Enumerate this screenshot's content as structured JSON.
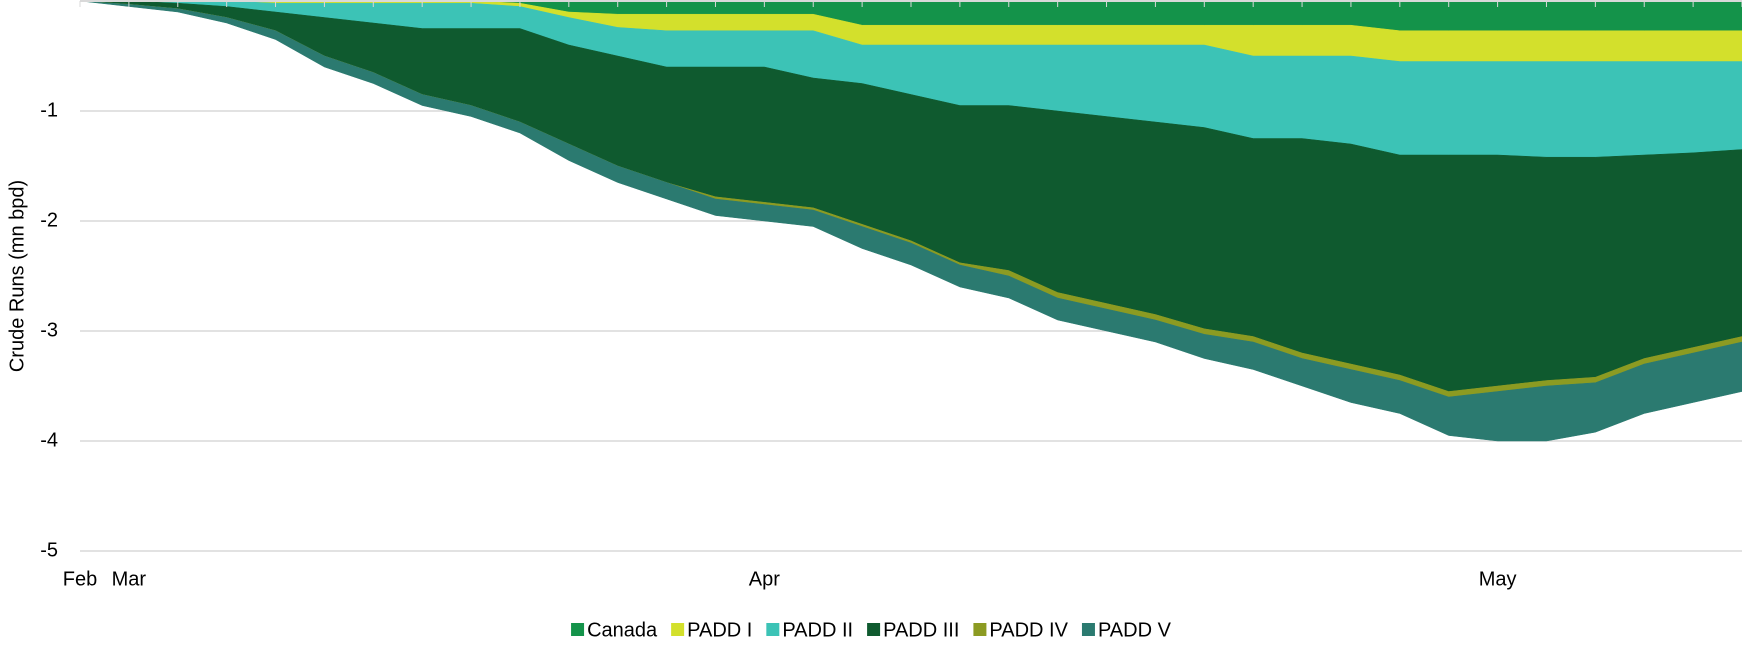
{
  "chart_data": {
    "type": "stacked_area",
    "y_label": "Crude Runs (mn bpd)",
    "categories": [
      "Feb",
      "Mar",
      null,
      null,
      null,
      null,
      null,
      null,
      null,
      null,
      null,
      null,
      null,
      null,
      "Apr",
      null,
      null,
      null,
      null,
      null,
      null,
      null,
      null,
      null,
      null,
      null,
      null,
      null,
      null,
      "May",
      null,
      null,
      null,
      null,
      null
    ],
    "ylim": [
      -5,
      0
    ],
    "yticks": [
      -5,
      -4,
      -3,
      -2,
      -1
    ],
    "grid": true,
    "legend": "bottom",
    "series": [
      {
        "name": "Canada",
        "color": "#14934a",
        "values": [
          0,
          0,
          0,
          0,
          0,
          0,
          0,
          0,
          0,
          -0.02,
          -0.1,
          -0.12,
          -0.12,
          -0.12,
          -0.12,
          -0.12,
          -0.22,
          -0.22,
          -0.22,
          -0.22,
          -0.22,
          -0.22,
          -0.22,
          -0.22,
          -0.22,
          -0.22,
          -0.22,
          -0.27,
          -0.27,
          -0.27,
          -0.27,
          -0.27,
          -0.27,
          -0.27,
          -0.27
        ]
      },
      {
        "name": "PADD I",
        "color": "#d3e02c",
        "values": [
          0,
          0,
          0,
          0,
          -0.02,
          -0.02,
          -0.02,
          -0.02,
          -0.02,
          -0.03,
          -0.05,
          -0.12,
          -0.15,
          -0.15,
          -0.15,
          -0.15,
          -0.18,
          -0.18,
          -0.18,
          -0.18,
          -0.18,
          -0.18,
          -0.18,
          -0.18,
          -0.28,
          -0.28,
          -0.28,
          -0.28,
          -0.28,
          -0.28,
          -0.28,
          -0.28,
          -0.28,
          -0.28,
          -0.28
        ]
      },
      {
        "name": "PADD II",
        "color": "#3cc3b6",
        "values": [
          0,
          0,
          -0.02,
          -0.05,
          -0.08,
          -0.13,
          -0.18,
          -0.23,
          -0.23,
          -0.2,
          -0.25,
          -0.26,
          -0.33,
          -0.33,
          -0.33,
          -0.43,
          -0.35,
          -0.45,
          -0.55,
          -0.55,
          -0.6,
          -0.65,
          -0.7,
          -0.75,
          -0.75,
          -0.75,
          -0.8,
          -0.85,
          -0.85,
          -0.85,
          -0.87,
          -0.87,
          -0.85,
          -0.83,
          -0.8
        ]
      },
      {
        "name": "PADD III",
        "color": "#0f5a2f",
        "values": [
          0,
          -0.03,
          -0.05,
          -0.1,
          -0.17,
          -0.35,
          -0.45,
          -0.6,
          -0.7,
          -0.85,
          -0.9,
          -1.0,
          -1.05,
          -1.18,
          -1.23,
          -1.18,
          -1.28,
          -1.33,
          -1.43,
          -1.5,
          -1.65,
          -1.7,
          -1.75,
          -1.83,
          -1.8,
          -1.95,
          -2.0,
          -2.0,
          -2.15,
          -2.1,
          -2.03,
          -2.0,
          -1.85,
          -1.77,
          -1.7
        ]
      },
      {
        "name": "PADD IV",
        "color": "#8c9b22",
        "values": [
          0,
          0,
          0,
          0,
          0,
          0,
          0,
          0,
          0,
          0,
          0,
          0,
          0,
          -0.02,
          -0.02,
          -0.02,
          -0.02,
          -0.02,
          -0.02,
          -0.05,
          -0.05,
          -0.05,
          -0.05,
          -0.05,
          -0.05,
          -0.05,
          -0.05,
          -0.05,
          -0.05,
          -0.05,
          -0.05,
          -0.05,
          -0.05,
          -0.05,
          -0.05
        ]
      },
      {
        "name": "PADD V",
        "color": "#2b7a70",
        "values": [
          0,
          -0.02,
          -0.03,
          -0.05,
          -0.08,
          -0.1,
          -0.1,
          -0.1,
          -0.1,
          -0.1,
          -0.15,
          -0.15,
          -0.15,
          -0.15,
          -0.15,
          -0.15,
          -0.2,
          -0.2,
          -0.2,
          -0.2,
          -0.2,
          -0.2,
          -0.2,
          -0.22,
          -0.25,
          -0.25,
          -0.3,
          -0.3,
          -0.35,
          -0.45,
          -0.5,
          -0.45,
          -0.45,
          -0.45,
          -0.45
        ]
      }
    ]
  }
}
